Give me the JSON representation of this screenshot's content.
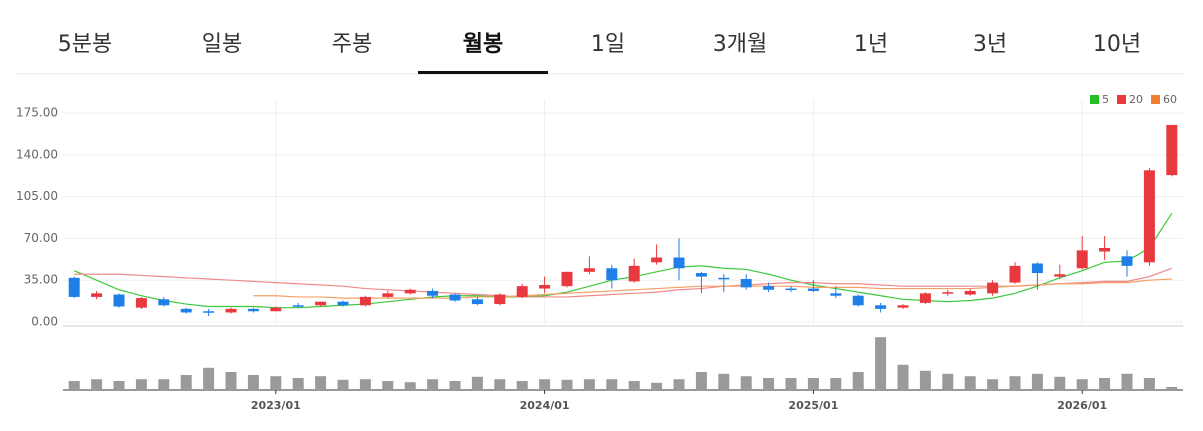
{
  "tabs": [
    "5분봉",
    "일봉",
    "주봉",
    "월봉",
    "1일",
    "3개월",
    "1년",
    "3년",
    "10년"
  ],
  "active_tab": 3,
  "chart_data": {
    "type": "candlestick",
    "up_color": "#e8393f",
    "down_color": "#1e7fe8",
    "categories": [
      null,
      null,
      null,
      null,
      null,
      null,
      null,
      null,
      null,
      "2023/01",
      null,
      null,
      null,
      null,
      null,
      null,
      null,
      null,
      null,
      null,
      null,
      "2024/01",
      null,
      null,
      null,
      null,
      null,
      null,
      null,
      null,
      null,
      null,
      null,
      "2025/01",
      null,
      null,
      null,
      null,
      null,
      null,
      null,
      null,
      null,
      null,
      null,
      "2026/01",
      null,
      null,
      null,
      null
    ],
    "open": [
      37,
      21,
      23,
      12,
      19,
      11,
      9,
      8,
      11,
      9,
      14,
      14,
      17,
      14,
      21,
      24,
      26,
      23,
      19,
      15,
      21,
      28,
      30,
      42,
      45,
      34,
      50,
      54,
      41,
      37,
      36,
      30,
      28,
      28,
      24,
      22,
      14,
      12,
      16,
      24,
      23,
      24,
      33,
      49,
      38,
      45,
      59,
      55,
      50,
      123
    ],
    "high": [
      38,
      26,
      24,
      21,
      21,
      12,
      11,
      12,
      12,
      13,
      16,
      17,
      18,
      22,
      26,
      28,
      28,
      24,
      21,
      24,
      32,
      38,
      42,
      55,
      48,
      53,
      65,
      70,
      42,
      40,
      40,
      33,
      30,
      35,
      30,
      23,
      16,
      15,
      25,
      27,
      28,
      35,
      50,
      50,
      48,
      72,
      72,
      60,
      129,
      165
    ],
    "low": [
      20,
      19,
      12,
      11,
      13,
      7,
      5,
      7,
      8,
      9,
      12,
      13,
      13,
      13,
      20,
      23,
      20,
      17,
      14,
      14,
      20,
      24,
      29,
      40,
      28,
      33,
      48,
      35,
      24,
      25,
      27,
      25,
      25,
      25,
      20,
      13,
      8,
      11,
      15,
      22,
      22,
      22,
      32,
      27,
      36,
      44,
      52,
      38,
      47,
      122
    ],
    "close": [
      21,
      24,
      13,
      20,
      14,
      8,
      8,
      11,
      9,
      12,
      13,
      17,
      14,
      21,
      24,
      27,
      22,
      18,
      15,
      23,
      30,
      31,
      42,
      45,
      35,
      47,
      54,
      45,
      38,
      36,
      29,
      27,
      27,
      26,
      22,
      14,
      11,
      14,
      24,
      25,
      26,
      33,
      47,
      41,
      40,
      60,
      62,
      47,
      127,
      165
    ],
    "volume": {
      "color": "#9a9a9a",
      "values": [
        15,
        18,
        15,
        18,
        18,
        25,
        37,
        30,
        25,
        23,
        20,
        23,
        17,
        18,
        15,
        13,
        18,
        15,
        22,
        18,
        15,
        18,
        17,
        18,
        18,
        15,
        12,
        18,
        30,
        27,
        23,
        20,
        20,
        20,
        20,
        30,
        88,
        42,
        32,
        27,
        23,
        18,
        23,
        27,
        22,
        18,
        20,
        27,
        20,
        5
      ]
    },
    "series": [
      {
        "name": "5",
        "color": "#3cc83c",
        "values": [
          43,
          35,
          27,
          22,
          18,
          15,
          13,
          13,
          13,
          12,
          12,
          13,
          14,
          15,
          17,
          19,
          21,
          22,
          22,
          21,
          21,
          22,
          25,
          30,
          35,
          38,
          42,
          46,
          47,
          45,
          44,
          40,
          35,
          31,
          28,
          25,
          22,
          19,
          18,
          17,
          18,
          20,
          24,
          30,
          37,
          43,
          50,
          51,
          62,
          91
        ]
      },
      {
        "name": "20",
        "color": "#f08a8a",
        "values": [
          40,
          40,
          40,
          39,
          38,
          37,
          36,
          35,
          34,
          33,
          32,
          31,
          30,
          28,
          27,
          26,
          25,
          24,
          23,
          22,
          21,
          21,
          21,
          22,
          23,
          24,
          25,
          27,
          28,
          30,
          31,
          32,
          33,
          33,
          32,
          32,
          31,
          30,
          30,
          30,
          30,
          30,
          30,
          31,
          32,
          33,
          34,
          34,
          38,
          45
        ]
      },
      {
        "name": "60",
        "color": "#f5a066",
        "values": [
          null,
          null,
          null,
          null,
          null,
          null,
          null,
          null,
          22,
          22,
          21,
          21,
          20,
          20,
          20,
          20,
          20,
          20,
          21,
          21,
          22,
          23,
          24,
          25,
          26,
          27,
          28,
          29,
          30,
          30,
          30,
          30,
          30,
          29,
          29,
          29,
          28,
          28,
          28,
          28,
          28,
          29,
          30,
          31,
          32,
          32,
          33,
          33,
          35,
          36
        ]
      }
    ],
    "legend_colors": [
      "#22c022",
      "#e8393f",
      "#f08030"
    ],
    "ylim": [
      0,
      175
    ],
    "yticks": [
      {
        "value": 0,
        "label": "0.00"
      },
      {
        "value": 35,
        "label": "35.00"
      },
      {
        "value": 70,
        "label": "70.00"
      },
      {
        "value": 105,
        "label": "105.00"
      },
      {
        "value": 140,
        "label": "140.00"
      },
      {
        "value": 175,
        "label": "175.00"
      }
    ],
    "grid": true
  }
}
